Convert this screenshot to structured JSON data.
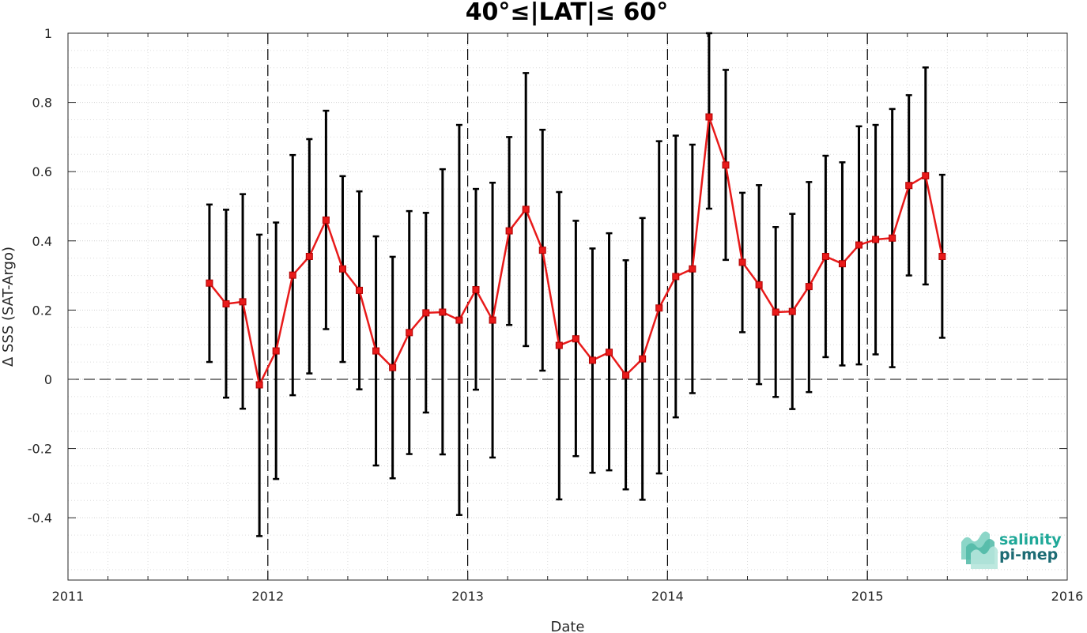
{
  "chart_data": {
    "type": "line",
    "title": "40°≤|LAT|≤ 60°",
    "xlabel": "Date",
    "ylabel": "Δ SSS (SAT-Argo)",
    "xlim": [
      2011,
      2016
    ],
    "ylim": [
      -0.58,
      1.0
    ],
    "x_ticks": [
      "2011",
      "2012",
      "2013",
      "2014",
      "2015",
      "2016"
    ],
    "y_ticks": [
      {
        "value": 1,
        "label": "1"
      },
      {
        "value": 0.8,
        "label": "0.8"
      },
      {
        "value": 0.6,
        "label": "0.6"
      },
      {
        "value": 0.4,
        "label": "0.4"
      },
      {
        "value": 0.2,
        "label": "0.2"
      },
      {
        "value": 0,
        "label": "0"
      },
      {
        "value": -0.2,
        "label": "-0.2"
      },
      {
        "value": -0.4,
        "label": "-0.4"
      }
    ],
    "grid": true,
    "year_boundaries": [
      2012,
      2013,
      2014,
      2015
    ],
    "zero_line": 0,
    "series": [
      {
        "color": "#e81a1a",
        "errorbar_color": "#000000",
        "points": [
          {
            "x": "2011-09",
            "y": 0.278,
            "lo": 0.05,
            "hi": 0.505
          },
          {
            "x": "2011-10",
            "y": 0.218,
            "lo": -0.053,
            "hi": 0.49
          },
          {
            "x": "2011-11",
            "y": 0.224,
            "lo": -0.085,
            "hi": 0.535
          },
          {
            "x": "2011-12",
            "y": -0.016,
            "lo": -0.453,
            "hi": 0.418
          },
          {
            "x": "2012-01",
            "y": 0.082,
            "lo": -0.288,
            "hi": 0.453
          },
          {
            "x": "2012-02",
            "y": 0.301,
            "lo": -0.046,
            "hi": 0.648
          },
          {
            "x": "2012-03",
            "y": 0.355,
            "lo": 0.017,
            "hi": 0.694
          },
          {
            "x": "2012-04",
            "y": 0.46,
            "lo": 0.145,
            "hi": 0.776
          },
          {
            "x": "2012-05",
            "y": 0.319,
            "lo": 0.05,
            "hi": 0.587
          },
          {
            "x": "2012-06",
            "y": 0.257,
            "lo": -0.029,
            "hi": 0.543
          },
          {
            "x": "2012-07",
            "y": 0.082,
            "lo": -0.249,
            "hi": 0.413
          },
          {
            "x": "2012-08",
            "y": 0.034,
            "lo": -0.286,
            "hi": 0.354
          },
          {
            "x": "2012-09",
            "y": 0.135,
            "lo": -0.216,
            "hi": 0.486
          },
          {
            "x": "2012-10",
            "y": 0.192,
            "lo": -0.096,
            "hi": 0.481
          },
          {
            "x": "2012-11",
            "y": 0.194,
            "lo": -0.217,
            "hi": 0.607
          },
          {
            "x": "2012-12",
            "y": 0.171,
            "lo": -0.392,
            "hi": 0.735
          },
          {
            "x": "2013-01",
            "y": 0.259,
            "lo": -0.03,
            "hi": 0.55
          },
          {
            "x": "2013-02",
            "y": 0.171,
            "lo": -0.226,
            "hi": 0.568
          },
          {
            "x": "2013-03",
            "y": 0.429,
            "lo": 0.157,
            "hi": 0.7
          },
          {
            "x": "2013-04",
            "y": 0.491,
            "lo": 0.096,
            "hi": 0.885
          },
          {
            "x": "2013-05",
            "y": 0.373,
            "lo": 0.025,
            "hi": 0.721
          },
          {
            "x": "2013-06",
            "y": 0.098,
            "lo": -0.347,
            "hi": 0.541
          },
          {
            "x": "2013-07",
            "y": 0.117,
            "lo": -0.222,
            "hi": 0.458
          },
          {
            "x": "2013-08",
            "y": 0.055,
            "lo": -0.27,
            "hi": 0.378
          },
          {
            "x": "2013-09",
            "y": 0.078,
            "lo": -0.263,
            "hi": 0.422
          },
          {
            "x": "2013-10",
            "y": 0.012,
            "lo": -0.318,
            "hi": 0.344
          },
          {
            "x": "2013-11",
            "y": 0.059,
            "lo": -0.348,
            "hi": 0.466
          },
          {
            "x": "2013-12",
            "y": 0.206,
            "lo": -0.272,
            "hi": 0.688
          },
          {
            "x": "2014-01",
            "y": 0.297,
            "lo": -0.11,
            "hi": 0.704
          },
          {
            "x": "2014-02",
            "y": 0.319,
            "lo": -0.04,
            "hi": 0.678
          },
          {
            "x": "2014-03",
            "y": 0.758,
            "lo": 0.493,
            "hi": 1.0
          },
          {
            "x": "2014-04",
            "y": 0.619,
            "lo": 0.345,
            "hi": 0.894
          },
          {
            "x": "2014-05",
            "y": 0.338,
            "lo": 0.136,
            "hi": 0.539
          },
          {
            "x": "2014-06",
            "y": 0.273,
            "lo": -0.014,
            "hi": 0.561
          },
          {
            "x": "2014-07",
            "y": 0.194,
            "lo": -0.051,
            "hi": 0.44
          },
          {
            "x": "2014-08",
            "y": 0.196,
            "lo": -0.086,
            "hi": 0.478
          },
          {
            "x": "2014-09",
            "y": 0.268,
            "lo": -0.037,
            "hi": 0.57
          },
          {
            "x": "2014-10",
            "y": 0.355,
            "lo": 0.064,
            "hi": 0.646
          },
          {
            "x": "2014-11",
            "y": 0.334,
            "lo": 0.04,
            "hi": 0.627
          },
          {
            "x": "2014-12",
            "y": 0.388,
            "lo": 0.043,
            "hi": 0.731
          },
          {
            "x": "2015-01",
            "y": 0.404,
            "lo": 0.072,
            "hi": 0.735
          },
          {
            "x": "2015-02",
            "y": 0.408,
            "lo": 0.035,
            "hi": 0.781
          },
          {
            "x": "2015-03",
            "y": 0.56,
            "lo": 0.3,
            "hi": 0.821
          },
          {
            "x": "2015-04",
            "y": 0.588,
            "lo": 0.274,
            "hi": 0.901
          },
          {
            "x": "2015-05",
            "y": 0.355,
            "lo": 0.12,
            "hi": 0.591
          }
        ]
      }
    ]
  },
  "logo": {
    "line1": "salinity",
    "line2": "pi-mep",
    "color1": "#1fa898",
    "color2": "#1c6b74"
  }
}
